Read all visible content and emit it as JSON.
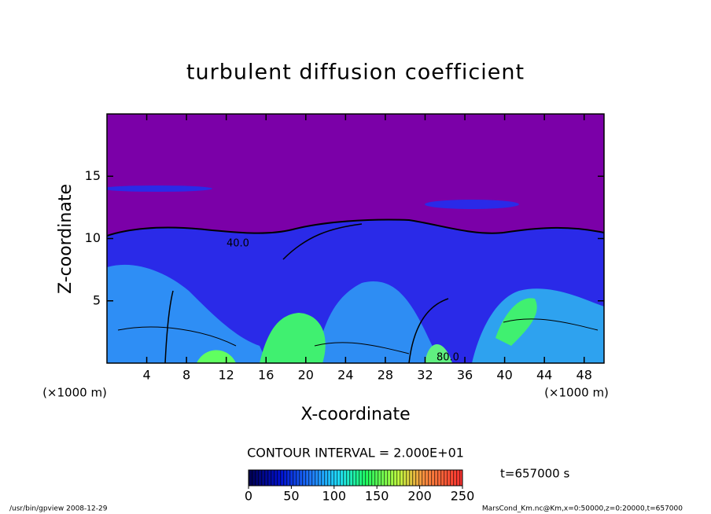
{
  "chart_data": {
    "type": "heatmap",
    "title": "turbulent diffusion coefficient",
    "x_label": "X-coordinate",
    "y_label": "Z-coordinate",
    "x_unit": "(×1000 m)",
    "y_unit": "(×1000 m)",
    "xlim": [
      0,
      50
    ],
    "xticks": [
      4,
      8,
      12,
      16,
      20,
      24,
      28,
      32,
      36,
      40,
      44,
      48
    ],
    "ylim": [
      0,
      20
    ],
    "yticks": [
      5,
      10,
      15
    ],
    "contour_labels": [
      "40.0",
      "80.0"
    ],
    "contour_interval": "CONTOUR INTERVAL = 2.000E+01",
    "time_label": "t=657000 s",
    "colorbar": {
      "clim": [
        0,
        250
      ],
      "ticks": [
        0,
        50,
        100,
        150,
        200,
        250
      ]
    },
    "footer_left": "/usr/bin/gpview  2008-12-29",
    "footer_right": "MarsCond_Km.nc@Km,x=0:50000,z=0:20000,t=657000"
  }
}
